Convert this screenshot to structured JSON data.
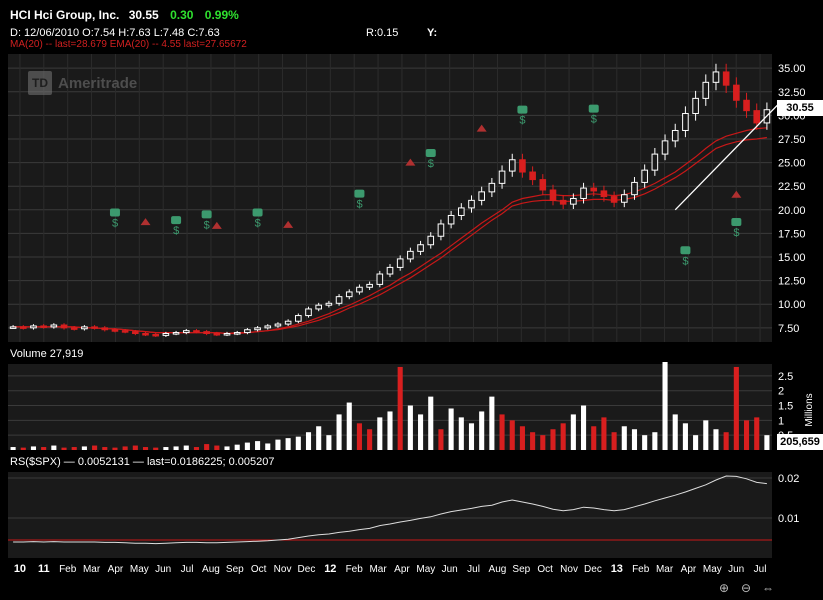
{
  "header": {
    "symbol": "HCI Hci Group, Inc.",
    "last": "30.55",
    "change": "0.30",
    "change_pct": "0.99%",
    "ohlc": "D: 12/06/2010 O:7.54 H:7.63 L:7.48 C:7.63",
    "r_value": "R:0.15",
    "y_value": "Y:",
    "ma_legend": "MA(20) -- last=28.679 EMA(20) -- 4.55 last=27.65672"
  },
  "logo": {
    "mark": "TD",
    "text": "Ameritrade"
  },
  "price_tag": "30.55",
  "volume_label": "Volume 27,919",
  "volume_tag": "205,659",
  "volume_unit": "Millions",
  "rs_label": "RS($SPX) — 0.0052131 — last=0.0186225; 0.005207",
  "colors": {
    "background": "#000000",
    "panel": "#1a1a1a",
    "grid": "#3a3a3a",
    "up": "#ffffff",
    "down": "#d81f1f",
    "ma": "#c81818",
    "positive": "#2fe02f",
    "event_icon": "#3c9a6e"
  },
  "chart_data": [
    {
      "type": "candlestick",
      "title": "HCI Hci Group, Inc.",
      "ylim": [
        6.0,
        36.5
      ],
      "y_ticks": [
        "35.00",
        "32.50",
        "30.00",
        "27.50",
        "25.00",
        "22.50",
        "20.00",
        "17.50",
        "15.00",
        "12.50",
        "10.00",
        "7.50"
      ],
      "x_ticks": [
        "10",
        "11",
        "Feb",
        "Mar",
        "Apr",
        "May",
        "Jun",
        "Jul",
        "Aug",
        "Sep",
        "Oct",
        "Nov",
        "Dec",
        "12",
        "Feb",
        "Mar",
        "Apr",
        "May",
        "Jun",
        "Jul",
        "Aug",
        "Sep",
        "Oct",
        "Nov",
        "Dec",
        "13",
        "Feb",
        "Mar",
        "Apr",
        "May",
        "Jun",
        "Jul"
      ],
      "close": [
        7.6,
        7.5,
        7.7,
        7.6,
        7.8,
        7.5,
        7.4,
        7.6,
        7.5,
        7.3,
        7.2,
        7.1,
        6.9,
        6.8,
        6.7,
        6.9,
        7.0,
        7.2,
        7.1,
        6.9,
        6.8,
        6.9,
        7.0,
        7.3,
        7.5,
        7.7,
        7.9,
        8.2,
        8.8,
        9.5,
        9.9,
        10.1,
        10.8,
        11.3,
        11.8,
        12.1,
        13.2,
        13.9,
        14.8,
        15.6,
        16.3,
        17.2,
        18.5,
        19.4,
        20.2,
        21.0,
        21.9,
        22.8,
        24.1,
        25.3,
        24.0,
        23.2,
        22.1,
        21.0,
        20.6,
        21.2,
        22.3,
        22.0,
        21.4,
        20.8,
        21.6,
        22.9,
        24.2,
        25.9,
        27.3,
        28.4,
        30.2,
        31.8,
        33.5,
        34.6,
        33.2,
        31.6,
        30.5,
        29.2,
        30.6
      ],
      "ma20": [
        7.6,
        7.6,
        7.6,
        7.6,
        7.6,
        7.6,
        7.6,
        7.5,
        7.5,
        7.4,
        7.4,
        7.3,
        7.2,
        7.1,
        7.0,
        7.0,
        7.0,
        7.0,
        7.0,
        7.0,
        7.0,
        6.9,
        7.0,
        7.0,
        7.1,
        7.2,
        7.4,
        7.6,
        7.9,
        8.2,
        8.6,
        9.0,
        9.5,
        9.9,
        10.4,
        10.9,
        11.5,
        12.0,
        12.7,
        13.3,
        14.0,
        14.7,
        15.4,
        16.2,
        17.0,
        17.8,
        18.6,
        19.3,
        20.0,
        20.8,
        21.2,
        21.4,
        21.6,
        21.6,
        21.5,
        21.5,
        21.6,
        21.7,
        21.6,
        21.5,
        21.6,
        21.9,
        22.3,
        22.8,
        23.4,
        24.0,
        24.8,
        25.6,
        26.5,
        27.3,
        27.8,
        28.1,
        28.4,
        28.6,
        28.68
      ],
      "ema20": [
        7.6,
        7.6,
        7.6,
        7.6,
        7.6,
        7.6,
        7.6,
        7.5,
        7.5,
        7.4,
        7.4,
        7.3,
        7.2,
        7.1,
        7.0,
        7.0,
        7.0,
        7.0,
        7.0,
        7.0,
        7.0,
        6.9,
        6.9,
        7.0,
        7.1,
        7.2,
        7.3,
        7.5,
        7.7,
        8.0,
        8.3,
        8.7,
        9.1,
        9.6,
        10.0,
        10.5,
        11.0,
        11.6,
        12.2,
        12.8,
        13.5,
        14.2,
        14.9,
        15.7,
        16.5,
        17.3,
        18.1,
        18.9,
        19.6,
        20.4,
        20.7,
        20.9,
        21.0,
        21.0,
        20.9,
        20.9,
        21.0,
        21.1,
        21.1,
        21.0,
        21.1,
        21.3,
        21.7,
        22.2,
        22.8,
        23.4,
        24.1,
        24.9,
        25.7,
        26.5,
        26.9,
        27.2,
        27.4,
        27.5,
        27.66
      ],
      "trendline": {
        "from_x": 65,
        "from_y": 20.0,
        "to_x": 75.5,
        "to_y": 31.6
      }
    },
    {
      "type": "bar",
      "title": "Volume",
      "ylabel": "Millions",
      "ylim": [
        0,
        2.9
      ],
      "y_ticks": [
        "2.5",
        "2",
        "1.5",
        "1",
        "0.5"
      ],
      "values": [
        0.1,
        0.08,
        0.12,
        0.1,
        0.15,
        0.08,
        0.1,
        0.12,
        0.15,
        0.1,
        0.08,
        0.12,
        0.15,
        0.1,
        0.08,
        0.1,
        0.12,
        0.15,
        0.1,
        0.2,
        0.15,
        0.12,
        0.18,
        0.25,
        0.3,
        0.22,
        0.35,
        0.4,
        0.45,
        0.6,
        0.8,
        0.5,
        1.2,
        1.6,
        0.9,
        0.7,
        1.1,
        1.3,
        2.8,
        1.5,
        1.2,
        1.8,
        0.7,
        1.4,
        1.1,
        0.9,
        1.3,
        1.8,
        1.2,
        1.0,
        0.8,
        0.6,
        0.5,
        0.7,
        0.9,
        1.2,
        1.5,
        0.8,
        1.1,
        0.6,
        0.8,
        0.7,
        0.5,
        0.6,
        3.0,
        1.2,
        0.9,
        0.5,
        1.0,
        0.7,
        0.6,
        2.8,
        1.0,
        1.1,
        0.5
      ],
      "down": [
        false,
        true,
        false,
        true,
        false,
        true,
        true,
        false,
        true,
        true,
        true,
        true,
        true,
        true,
        true,
        false,
        false,
        false,
        true,
        true,
        true,
        false,
        false,
        false,
        false,
        false,
        false,
        false,
        false,
        false,
        false,
        false,
        false,
        false,
        true,
        true,
        false,
        false,
        true,
        false,
        false,
        false,
        true,
        false,
        false,
        false,
        false,
        false,
        true,
        true,
        true,
        true,
        true,
        true,
        true,
        false,
        false,
        true,
        true,
        true,
        false,
        false,
        false,
        false,
        false,
        false,
        false,
        false,
        false,
        false,
        true,
        true,
        true,
        true,
        false
      ]
    },
    {
      "type": "line",
      "title": "RS($SPX)",
      "ylim": [
        0.0,
        0.0215
      ],
      "y_ticks": [
        "0.02",
        "0.01"
      ],
      "values": [
        0.004,
        0.004,
        0.0041,
        0.004,
        0.0041,
        0.004,
        0.004,
        0.004,
        0.004,
        0.0039,
        0.0039,
        0.0038,
        0.0037,
        0.0037,
        0.0036,
        0.0037,
        0.0038,
        0.0039,
        0.0039,
        0.0038,
        0.0038,
        0.0039,
        0.004,
        0.0041,
        0.0042,
        0.0043,
        0.0045,
        0.0047,
        0.0051,
        0.0055,
        0.0058,
        0.006,
        0.0064,
        0.0067,
        0.0071,
        0.0074,
        0.0081,
        0.0085,
        0.009,
        0.0094,
        0.0099,
        0.0103,
        0.011,
        0.0116,
        0.012,
        0.0124,
        0.0129,
        0.0132,
        0.014,
        0.0145,
        0.014,
        0.0135,
        0.0129,
        0.0122,
        0.0118,
        0.0121,
        0.0127,
        0.0125,
        0.0121,
        0.0118,
        0.0121,
        0.0128,
        0.0135,
        0.0143,
        0.015,
        0.0157,
        0.0165,
        0.0174,
        0.0183,
        0.0195,
        0.0205,
        0.0204,
        0.0198,
        0.0189,
        0.0186
      ]
    }
  ]
}
